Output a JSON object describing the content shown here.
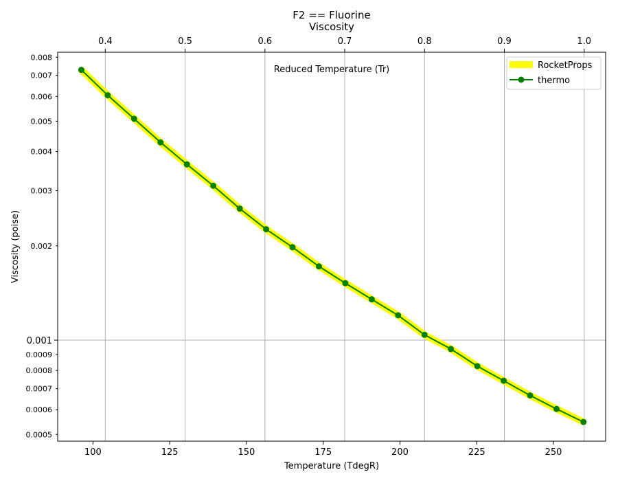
{
  "chart_data": {
    "type": "line",
    "title_line1": "F2 == Fluorine",
    "title_line2": "Viscosity",
    "xlabel": "Temperature (TdegR)",
    "ylabel": "Viscosity (poise)",
    "x2label": "Reduced Temperature (Tr)",
    "y_scale": "log",
    "xlim": [
      88.5,
      267
    ],
    "ylim": [
      0.000476,
      0.0083
    ],
    "grid": true,
    "x_ticks": [
      100,
      125,
      150,
      175,
      200,
      225,
      250
    ],
    "x_tick_labels": [
      "100",
      "125",
      "150",
      "175",
      "200",
      "225",
      "250"
    ],
    "x2_ticks": [
      0.4,
      0.5,
      0.6,
      0.7,
      0.8,
      0.9,
      1.0
    ],
    "x2_tick_labels": [
      "0.4",
      "0.5",
      "0.6",
      "0.7",
      "0.8",
      "0.9",
      "1.0"
    ],
    "tr_per_degR": 0.003846,
    "y_major_ticks": [
      0.001
    ],
    "y_major_tick_labels": [
      "0.001"
    ],
    "y_minor_ticks": [
      0.0005,
      0.0006,
      0.0007,
      0.0008,
      0.0009,
      0.002,
      0.003,
      0.004,
      0.005,
      0.006,
      0.007,
      0.008
    ],
    "y_minor_tick_labels": [
      "0.0005",
      "0.0006",
      "0.0007",
      "0.0008",
      "0.0009",
      "0.002",
      "0.003",
      "0.004",
      "0.005",
      "0.006",
      "0.007",
      "0.008"
    ],
    "legend_position": "top-right",
    "series": [
      {
        "name": "RocketProps",
        "color": "#ffff00",
        "style": "thick-line",
        "x": [
          96.2,
          259.8
        ],
        "y": [
          0.00729,
          0.000548
        ]
      },
      {
        "name": "thermo",
        "color": "#008000",
        "style": "line-with-markers",
        "x": [
          96.2,
          104.8,
          113.4,
          122.0,
          130.6,
          139.2,
          147.8,
          156.4,
          165.0,
          173.6,
          182.2,
          190.8,
          199.4,
          208.0,
          216.6,
          225.2,
          233.8,
          242.4,
          251.0,
          259.8
        ],
        "y": [
          0.00729,
          0.00605,
          0.00509,
          0.00428,
          0.00364,
          0.00311,
          0.00263,
          0.00226,
          0.00198,
          0.00172,
          0.00152,
          0.00135,
          0.0012,
          0.00104,
          0.000937,
          0.000826,
          0.000742,
          0.000666,
          0.000603,
          0.000548
        ]
      }
    ]
  }
}
